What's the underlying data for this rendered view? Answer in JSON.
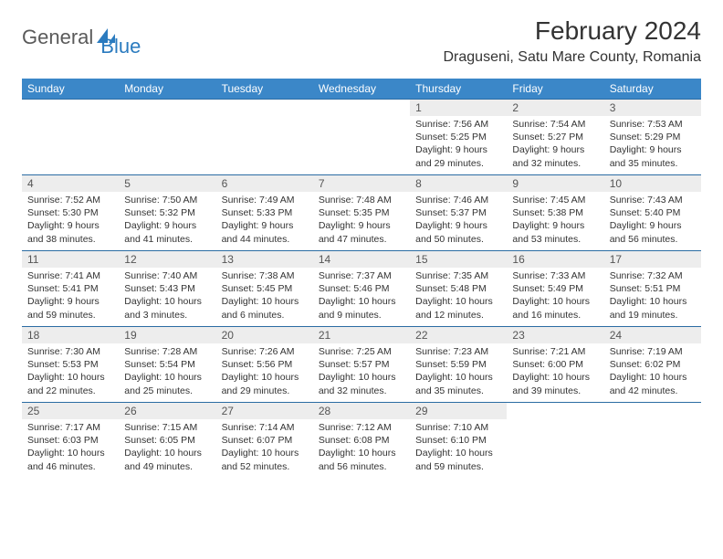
{
  "logo": {
    "text1": "General",
    "text2": "Blue",
    "color1": "#5a5a5a",
    "color2": "#2b7bbf",
    "icon_color": "#2b7bbf"
  },
  "title": "February 2024",
  "location": "Draguseni, Satu Mare County, Romania",
  "header_bg": "#3b87c8",
  "header_text_color": "#ffffff",
  "week_border_color": "#2b6ca3",
  "day_number_bg": "#ededed",
  "day_number_color": "#555555",
  "body_text_color": "#333333",
  "day_names": [
    "Sunday",
    "Monday",
    "Tuesday",
    "Wednesday",
    "Thursday",
    "Friday",
    "Saturday"
  ],
  "weeks": [
    [
      {
        "n": "",
        "sunrise": "",
        "sunset": "",
        "daylight": ""
      },
      {
        "n": "",
        "sunrise": "",
        "sunset": "",
        "daylight": ""
      },
      {
        "n": "",
        "sunrise": "",
        "sunset": "",
        "daylight": ""
      },
      {
        "n": "",
        "sunrise": "",
        "sunset": "",
        "daylight": ""
      },
      {
        "n": "1",
        "sunrise": "Sunrise: 7:56 AM",
        "sunset": "Sunset: 5:25 PM",
        "daylight": "Daylight: 9 hours and 29 minutes."
      },
      {
        "n": "2",
        "sunrise": "Sunrise: 7:54 AM",
        "sunset": "Sunset: 5:27 PM",
        "daylight": "Daylight: 9 hours and 32 minutes."
      },
      {
        "n": "3",
        "sunrise": "Sunrise: 7:53 AM",
        "sunset": "Sunset: 5:29 PM",
        "daylight": "Daylight: 9 hours and 35 minutes."
      }
    ],
    [
      {
        "n": "4",
        "sunrise": "Sunrise: 7:52 AM",
        "sunset": "Sunset: 5:30 PM",
        "daylight": "Daylight: 9 hours and 38 minutes."
      },
      {
        "n": "5",
        "sunrise": "Sunrise: 7:50 AM",
        "sunset": "Sunset: 5:32 PM",
        "daylight": "Daylight: 9 hours and 41 minutes."
      },
      {
        "n": "6",
        "sunrise": "Sunrise: 7:49 AM",
        "sunset": "Sunset: 5:33 PM",
        "daylight": "Daylight: 9 hours and 44 minutes."
      },
      {
        "n": "7",
        "sunrise": "Sunrise: 7:48 AM",
        "sunset": "Sunset: 5:35 PM",
        "daylight": "Daylight: 9 hours and 47 minutes."
      },
      {
        "n": "8",
        "sunrise": "Sunrise: 7:46 AM",
        "sunset": "Sunset: 5:37 PM",
        "daylight": "Daylight: 9 hours and 50 minutes."
      },
      {
        "n": "9",
        "sunrise": "Sunrise: 7:45 AM",
        "sunset": "Sunset: 5:38 PM",
        "daylight": "Daylight: 9 hours and 53 minutes."
      },
      {
        "n": "10",
        "sunrise": "Sunrise: 7:43 AM",
        "sunset": "Sunset: 5:40 PM",
        "daylight": "Daylight: 9 hours and 56 minutes."
      }
    ],
    [
      {
        "n": "11",
        "sunrise": "Sunrise: 7:41 AM",
        "sunset": "Sunset: 5:41 PM",
        "daylight": "Daylight: 9 hours and 59 minutes."
      },
      {
        "n": "12",
        "sunrise": "Sunrise: 7:40 AM",
        "sunset": "Sunset: 5:43 PM",
        "daylight": "Daylight: 10 hours and 3 minutes."
      },
      {
        "n": "13",
        "sunrise": "Sunrise: 7:38 AM",
        "sunset": "Sunset: 5:45 PM",
        "daylight": "Daylight: 10 hours and 6 minutes."
      },
      {
        "n": "14",
        "sunrise": "Sunrise: 7:37 AM",
        "sunset": "Sunset: 5:46 PM",
        "daylight": "Daylight: 10 hours and 9 minutes."
      },
      {
        "n": "15",
        "sunrise": "Sunrise: 7:35 AM",
        "sunset": "Sunset: 5:48 PM",
        "daylight": "Daylight: 10 hours and 12 minutes."
      },
      {
        "n": "16",
        "sunrise": "Sunrise: 7:33 AM",
        "sunset": "Sunset: 5:49 PM",
        "daylight": "Daylight: 10 hours and 16 minutes."
      },
      {
        "n": "17",
        "sunrise": "Sunrise: 7:32 AM",
        "sunset": "Sunset: 5:51 PM",
        "daylight": "Daylight: 10 hours and 19 minutes."
      }
    ],
    [
      {
        "n": "18",
        "sunrise": "Sunrise: 7:30 AM",
        "sunset": "Sunset: 5:53 PM",
        "daylight": "Daylight: 10 hours and 22 minutes."
      },
      {
        "n": "19",
        "sunrise": "Sunrise: 7:28 AM",
        "sunset": "Sunset: 5:54 PM",
        "daylight": "Daylight: 10 hours and 25 minutes."
      },
      {
        "n": "20",
        "sunrise": "Sunrise: 7:26 AM",
        "sunset": "Sunset: 5:56 PM",
        "daylight": "Daylight: 10 hours and 29 minutes."
      },
      {
        "n": "21",
        "sunrise": "Sunrise: 7:25 AM",
        "sunset": "Sunset: 5:57 PM",
        "daylight": "Daylight: 10 hours and 32 minutes."
      },
      {
        "n": "22",
        "sunrise": "Sunrise: 7:23 AM",
        "sunset": "Sunset: 5:59 PM",
        "daylight": "Daylight: 10 hours and 35 minutes."
      },
      {
        "n": "23",
        "sunrise": "Sunrise: 7:21 AM",
        "sunset": "Sunset: 6:00 PM",
        "daylight": "Daylight: 10 hours and 39 minutes."
      },
      {
        "n": "24",
        "sunrise": "Sunrise: 7:19 AM",
        "sunset": "Sunset: 6:02 PM",
        "daylight": "Daylight: 10 hours and 42 minutes."
      }
    ],
    [
      {
        "n": "25",
        "sunrise": "Sunrise: 7:17 AM",
        "sunset": "Sunset: 6:03 PM",
        "daylight": "Daylight: 10 hours and 46 minutes."
      },
      {
        "n": "26",
        "sunrise": "Sunrise: 7:15 AM",
        "sunset": "Sunset: 6:05 PM",
        "daylight": "Daylight: 10 hours and 49 minutes."
      },
      {
        "n": "27",
        "sunrise": "Sunrise: 7:14 AM",
        "sunset": "Sunset: 6:07 PM",
        "daylight": "Daylight: 10 hours and 52 minutes."
      },
      {
        "n": "28",
        "sunrise": "Sunrise: 7:12 AM",
        "sunset": "Sunset: 6:08 PM",
        "daylight": "Daylight: 10 hours and 56 minutes."
      },
      {
        "n": "29",
        "sunrise": "Sunrise: 7:10 AM",
        "sunset": "Sunset: 6:10 PM",
        "daylight": "Daylight: 10 hours and 59 minutes."
      },
      {
        "n": "",
        "sunrise": "",
        "sunset": "",
        "daylight": ""
      },
      {
        "n": "",
        "sunrise": "",
        "sunset": "",
        "daylight": ""
      }
    ]
  ]
}
